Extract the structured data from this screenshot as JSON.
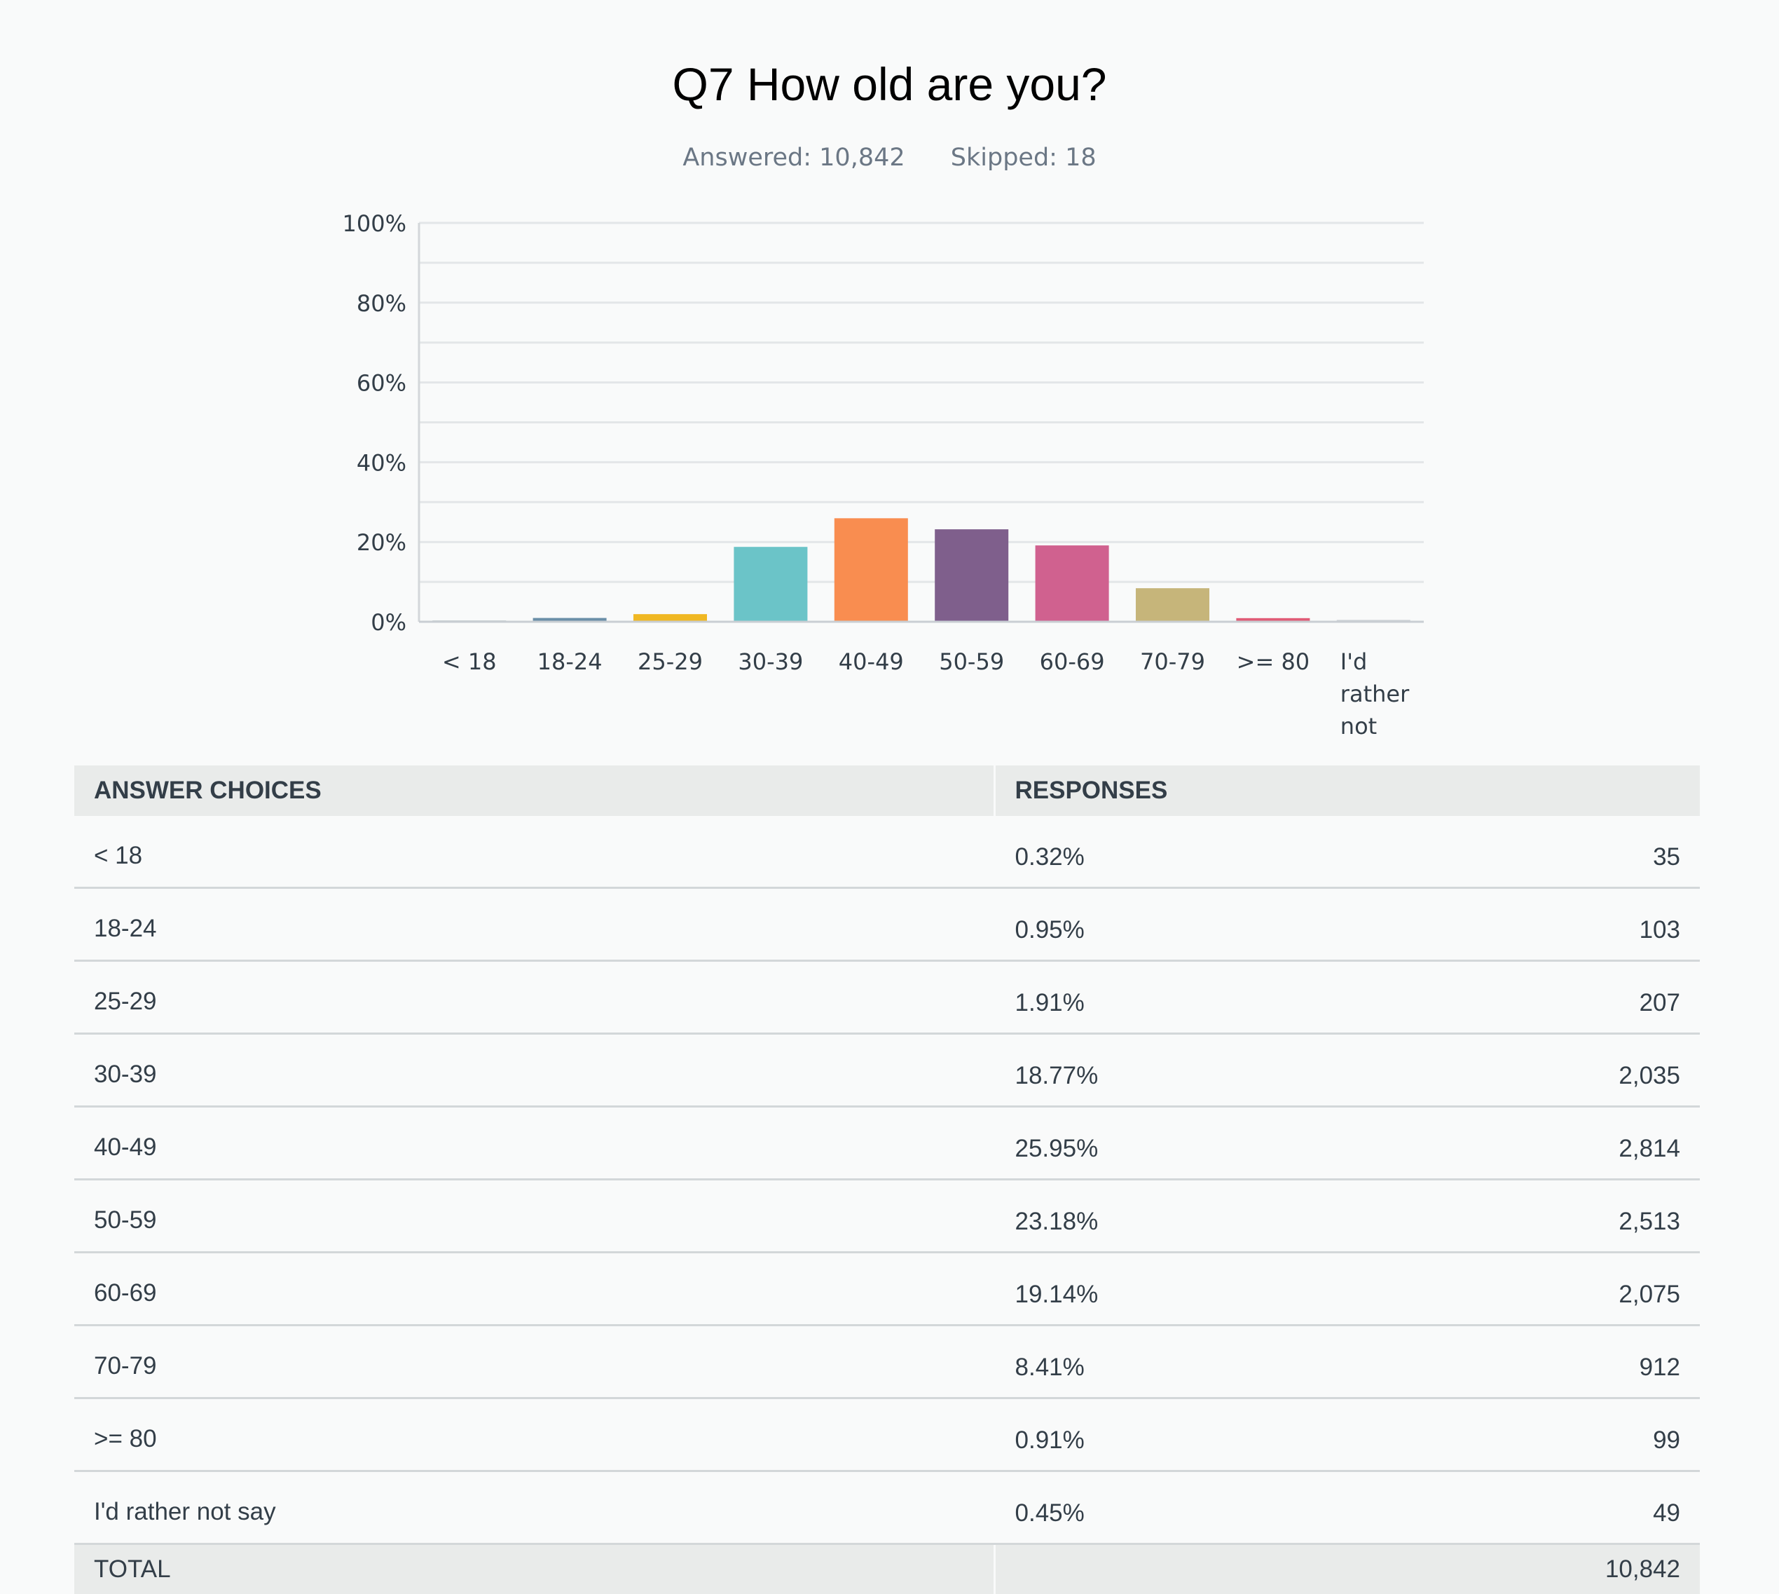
{
  "question": {
    "title": "Q7 How old are you?",
    "answered_label": "Answered: 10,842",
    "skipped_label": "Skipped: 18"
  },
  "chart_data": {
    "type": "bar",
    "title": "Q7 How old are you?",
    "xlabel": "",
    "ylabel": "",
    "ylim": [
      0,
      100
    ],
    "yticks": [
      "0%",
      "20%",
      "40%",
      "60%",
      "80%",
      "100%"
    ],
    "categories": [
      "< 18",
      "18-24",
      "25-29",
      "30-39",
      "40-49",
      "50-59",
      "60-69",
      "70-79",
      ">= 80",
      "I'd rather not"
    ],
    "values": [
      0.32,
      0.95,
      1.91,
      18.77,
      25.95,
      23.18,
      19.14,
      8.41,
      0.91,
      0.45
    ],
    "colors": [
      "#a8b6bd",
      "#6a8fa8",
      "#f0b823",
      "#6bc4c8",
      "#f98d50",
      "#7f5f8c",
      "#d0618f",
      "#c6b57a",
      "#e05b76",
      "#c9ced3"
    ]
  },
  "table": {
    "headers": [
      "ANSWER CHOICES",
      "RESPONSES"
    ],
    "rows": [
      {
        "choice": "< 18",
        "percent": "0.32%",
        "count": "35"
      },
      {
        "choice": "18-24",
        "percent": "0.95%",
        "count": "103"
      },
      {
        "choice": "25-29",
        "percent": "1.91%",
        "count": "207"
      },
      {
        "choice": "30-39",
        "percent": "18.77%",
        "count": "2,035"
      },
      {
        "choice": "40-49",
        "percent": "25.95%",
        "count": "2,814"
      },
      {
        "choice": "50-59",
        "percent": "23.18%",
        "count": "2,513"
      },
      {
        "choice": "60-69",
        "percent": "19.14%",
        "count": "2,075"
      },
      {
        "choice": "70-79",
        "percent": "8.41%",
        "count": "912"
      },
      {
        "choice": ">= 80",
        "percent": "0.91%",
        "count": "99"
      },
      {
        "choice": "I'd rather not say",
        "percent": "0.45%",
        "count": "49"
      }
    ],
    "total_label": "TOTAL",
    "total_count": "10,842"
  }
}
